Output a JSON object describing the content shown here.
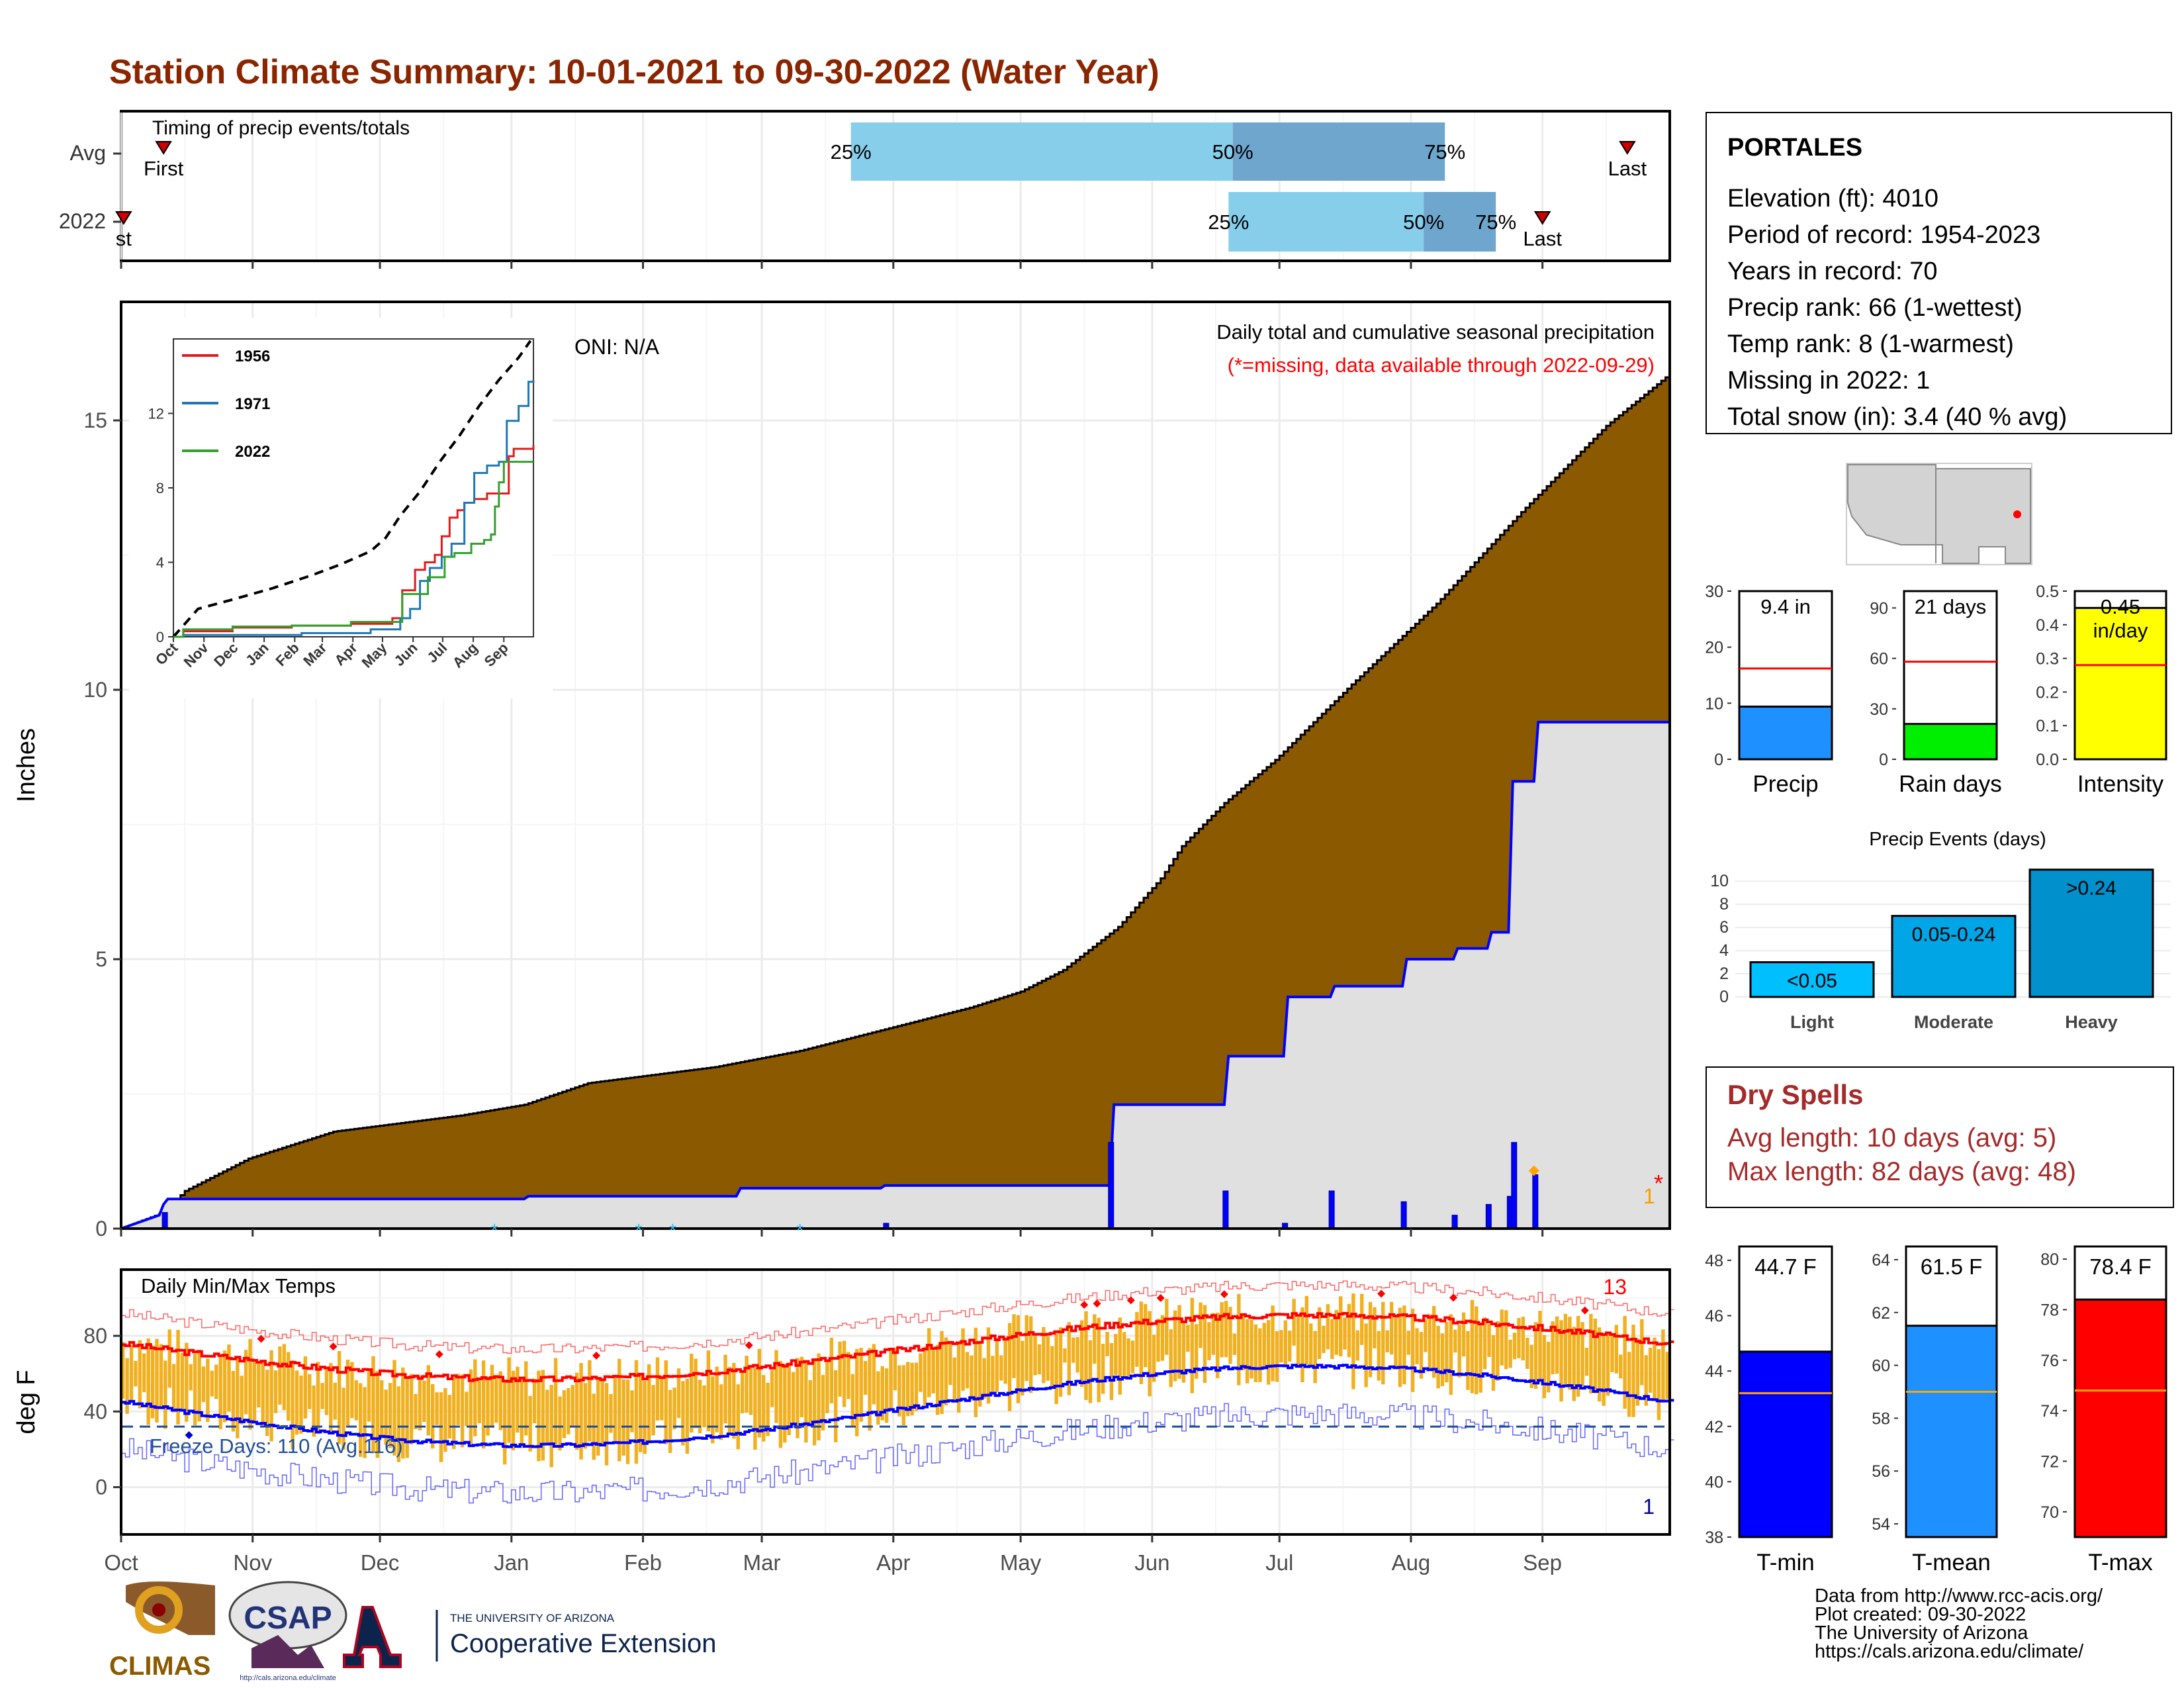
{
  "title": "Station Climate Summary: 10-01-2021 to 09-30-2022 (Water Year)",
  "colors": {
    "title": "#8b2500",
    "brown": "#8b5a00",
    "lightgray": "#e0e0e0",
    "blue": "#0000ff",
    "orange": "#f0b020",
    "red": "#ff0000",
    "skyblue": "#87ceeb",
    "steelblue": "#6ea6cd",
    "darkred": "#a52a2a"
  },
  "months": [
    "Oct",
    "Nov",
    "Dec",
    "Jan",
    "Feb",
    "Mar",
    "Apr",
    "May",
    "Jun",
    "Jul",
    "Aug",
    "Sep"
  ],
  "timing": {
    "label": "Timing of precip events/totals",
    "rows": [
      "Avg",
      "2022"
    ],
    "first_label": "First",
    "first_label_2022": "st",
    "last_label": "Last",
    "pct": [
      "25%",
      "50%",
      "75%"
    ],
    "avg": {
      "first_day": 10,
      "q25": 172,
      "q50": 262,
      "q75": 312,
      "last_day": 355
    },
    "y2022": {
      "first_day": 0,
      "q25": 261,
      "q50": 307,
      "q75": 324,
      "last_day": 335
    }
  },
  "precip_panel": {
    "ylabel": "Inches",
    "yticks": [
      "0",
      "5",
      "10",
      "15"
    ],
    "annotation1": "Daily total and cumulative seasonal precipitation",
    "annotation2": "(*=missing, data available through 2022-09-29)",
    "oni": "ONI: N/A",
    "missing_count": "1",
    "missing_mark": "*",
    "snow_mark": "*"
  },
  "inset": {
    "xticks": [
      "Oct",
      "Nov",
      "Dec",
      "Jan",
      "Feb",
      "Mar",
      "Apr",
      "May",
      "Jun",
      "Jul",
      "Aug",
      "Sep"
    ],
    "yticks": [
      "0",
      "4",
      "8",
      "12"
    ],
    "legend": [
      {
        "name": "1956",
        "color": "#e31a1c"
      },
      {
        "name": "1971",
        "color": "#1f78b4"
      },
      {
        "name": "2022",
        "color": "#33a02c"
      }
    ]
  },
  "temp_panel": {
    "ylabel": "deg F",
    "label": "Daily Min/Max Temps",
    "yticks": [
      "0",
      "40",
      "80"
    ],
    "freeze": "Freeze Days: 110 (Avg.116)",
    "record_high_count": "13",
    "record_low_count": "1"
  },
  "station": {
    "name": "PORTALES",
    "lines": [
      "Elevation (ft): 4010",
      "Period of record: 1954-2023",
      "Years in record: 70",
      "Precip rank: 66 (1-wettest)",
      "Temp rank: 8 (1-warmest)",
      "Missing in 2022: 1",
      "Total snow (in): 3.4 (40 % avg)"
    ]
  },
  "minibars": [
    {
      "label": "Precip",
      "value_label": "9.4 in",
      "value": 9.4,
      "avg": 16.2,
      "ymax": 30,
      "ticks": [
        "0",
        "10",
        "20",
        "30"
      ],
      "tickvals": [
        0,
        10,
        20,
        30
      ],
      "color": "#1e90ff"
    },
    {
      "label": "Rain days",
      "value_label": "21 days",
      "value": 21,
      "avg": 58,
      "ymax": 100,
      "ticks": [
        "0",
        "30",
        "60",
        "90"
      ],
      "tickvals": [
        0,
        30,
        60,
        90
      ],
      "color": "#00ee00"
    },
    {
      "label": "Intensity",
      "value_label": "0.45",
      "value_label2": "in/day",
      "value": 0.45,
      "avg": 0.28,
      "ymax": 0.5,
      "ticks": [
        "0.0",
        "0.1",
        "0.2",
        "0.3",
        "0.4",
        "0.5"
      ],
      "tickvals": [
        0,
        0.1,
        0.2,
        0.3,
        0.4,
        0.5
      ],
      "color": "#ffff00"
    }
  ],
  "events": {
    "title": "Precip Events (days)",
    "categories": [
      "Light",
      "Moderate",
      "Heavy"
    ],
    "bar_labels": [
      "<0.05",
      "0.05-0.24",
      ">0.24"
    ],
    "values": [
      3,
      7,
      11
    ],
    "yticks": [
      "0",
      "2",
      "4",
      "6",
      "8",
      "10"
    ],
    "colors": [
      "#00bfff",
      "#00a5e6",
      "#0090cc"
    ]
  },
  "dry_spells": {
    "title": "Dry Spells",
    "line1": "Avg length: 10 days (avg: 5)",
    "line2": "Max length: 82 days (avg: 48)"
  },
  "temp_bars": [
    {
      "label": "T-min",
      "value_label": "44.7 F",
      "value": 44.7,
      "avg": 43.2,
      "ymin": 38,
      "ymax": 48.5,
      "ticks": [
        "38",
        "40",
        "42",
        "44",
        "46",
        "48"
      ],
      "tickvals": [
        38,
        40,
        42,
        44,
        46,
        48
      ],
      "color": "#0000ff"
    },
    {
      "label": "T-mean",
      "value_label": "61.5 F",
      "value": 61.5,
      "avg": 59.0,
      "ymin": 53.5,
      "ymax": 64.5,
      "ticks": [
        "54",
        "56",
        "58",
        "60",
        "62",
        "64"
      ],
      "tickvals": [
        54,
        56,
        58,
        60,
        62,
        64
      ],
      "color": "#1e90ff"
    },
    {
      "label": "T-max",
      "value_label": "78.4 F",
      "value": 78.4,
      "avg": 74.8,
      "ymin": 69,
      "ymax": 80.5,
      "ticks": [
        "70",
        "72",
        "74",
        "76",
        "78",
        "80"
      ],
      "tickvals": [
        70,
        72,
        74,
        76,
        78,
        80
      ],
      "color": "#ff0000"
    }
  ],
  "footer": {
    "lines": [
      "Data from http://www.rcc-acis.org/",
      "Plot created: 09-30-2022",
      "The University of Arizona",
      "https://cals.arizona.edu/climate/"
    ],
    "climas": "CLIMAS",
    "csap": "CSAP",
    "csap_url": "http://cals.arizona.edu/climate",
    "ua_small": "THE UNIVERSITY OF ARIZONA",
    "ua_big": "Cooperative Extension"
  },
  "chart_data": {
    "type": "area",
    "title": "Station Climate Summary: 10-01-2021 to 09-30-2022 (Water Year)",
    "ylabel": "Inches",
    "ylim": [
      0,
      17.2
    ],
    "series": [
      {
        "name": "Average cumulative precipitation",
        "x": [
          0,
          10,
          15,
          30,
          50,
          80,
          95,
          110,
          140,
          160,
          180,
          200,
          212,
          222,
          235,
          245,
          250,
          260,
          272,
          290,
          310,
          330,
          350,
          364
        ],
        "y": [
          0,
          0.3,
          0.7,
          1.3,
          1.8,
          2.1,
          2.3,
          2.7,
          3.0,
          3.3,
          3.7,
          4.1,
          4.4,
          4.8,
          5.6,
          6.5,
          7.1,
          7.9,
          8.7,
          10.1,
          11.6,
          13.3,
          14.9,
          15.8
        ]
      },
      {
        "name": "2022 cumulative precipitation",
        "x": [
          0,
          9,
          10,
          11,
          95,
          96,
          145,
          146,
          179,
          180,
          233,
          234,
          260,
          261,
          274,
          275,
          285,
          286,
          302,
          303,
          314,
          315,
          322,
          323,
          327,
          328,
          333,
          334,
          364
        ],
        "y": [
          0,
          0.25,
          0.45,
          0.55,
          0.55,
          0.6,
          0.6,
          0.75,
          0.75,
          0.8,
          0.8,
          2.3,
          2.3,
          3.2,
          3.2,
          4.3,
          4.3,
          4.5,
          4.5,
          5.0,
          5.0,
          5.2,
          5.2,
          5.5,
          5.5,
          8.3,
          8.3,
          9.4,
          9.4
        ]
      }
    ],
    "daily_precip": {
      "days": [
        10,
        180,
        233,
        260,
        274,
        285,
        302,
        314,
        322,
        327,
        328,
        333
      ],
      "values": [
        0.3,
        0.1,
        1.6,
        0.7,
        0.1,
        0.7,
        0.5,
        0.25,
        0.45,
        0.6,
        1.6,
        1.0
      ]
    }
  }
}
